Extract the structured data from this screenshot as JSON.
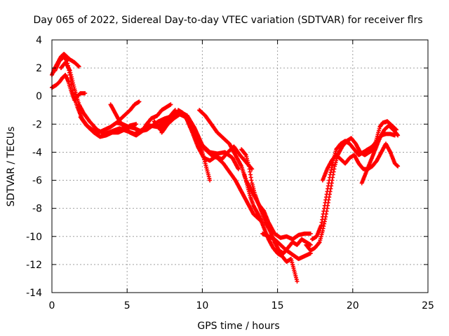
{
  "chart_data": {
    "type": "scatter",
    "title": "Day 065 of 2022, Sidereal Day-to-day VTEC variation (SDTVAR) for receiver flrs",
    "xlabel": "GPS time / hours",
    "ylabel": "SDTVAR / TECUs",
    "xlim": [
      0,
      25
    ],
    "ylim": [
      -14,
      4
    ],
    "xticks": [
      0,
      5,
      10,
      15,
      20,
      25
    ],
    "yticks": [
      -14,
      -12,
      -10,
      -8,
      -6,
      -4,
      -2,
      0,
      2,
      4
    ],
    "grid": true,
    "legend": "none",
    "marker": "plus",
    "color": "#ff0000",
    "tracks": [
      [
        [
          0.0,
          1.5
        ],
        [
          0.2,
          2.0
        ],
        [
          0.4,
          2.4
        ],
        [
          0.6,
          2.8
        ],
        [
          0.8,
          3.0
        ],
        [
          1.0,
          2.8
        ],
        [
          1.2,
          2.6
        ],
        [
          1.5,
          2.4
        ],
        [
          1.8,
          2.1
        ]
      ],
      [
        [
          0.0,
          0.6
        ],
        [
          0.3,
          0.8
        ],
        [
          0.5,
          1.0
        ],
        [
          0.7,
          1.3
        ],
        [
          0.9,
          1.5
        ],
        [
          1.1,
          1.0
        ],
        [
          1.3,
          0.3
        ],
        [
          1.5,
          -0.3
        ],
        [
          1.7,
          0.0
        ],
        [
          1.9,
          0.2
        ],
        [
          2.2,
          0.2
        ]
      ],
      [
        [
          0.2,
          1.8
        ],
        [
          0.5,
          2.5
        ],
        [
          0.8,
          2.8
        ],
        [
          1.0,
          2.5
        ],
        [
          1.2,
          1.5
        ],
        [
          1.4,
          0.2
        ],
        [
          1.7,
          -0.8
        ],
        [
          2.0,
          -1.6
        ],
        [
          2.4,
          -2.2
        ],
        [
          2.8,
          -2.6
        ],
        [
          3.2,
          -2.9
        ],
        [
          3.6,
          -2.8
        ],
        [
          4.0,
          -2.6
        ],
        [
          4.4,
          -2.6
        ],
        [
          4.8,
          -2.4
        ],
        [
          5.2,
          -2.1
        ],
        [
          5.6,
          -2.0
        ]
      ],
      [
        [
          0.6,
          2.0
        ],
        [
          0.9,
          2.4
        ],
        [
          1.2,
          1.8
        ],
        [
          1.5,
          0.5
        ],
        [
          1.8,
          -0.6
        ],
        [
          2.1,
          -1.2
        ],
        [
          2.5,
          -1.8
        ],
        [
          3.0,
          -2.4
        ],
        [
          3.5,
          -2.7
        ],
        [
          4.0,
          -2.5
        ],
        [
          4.5,
          -2.3
        ],
        [
          5.0,
          -2.5
        ],
        [
          5.5,
          -2.7
        ],
        [
          6.0,
          -2.4
        ],
        [
          6.5,
          -2.1
        ],
        [
          7.0,
          -2.2
        ],
        [
          7.5,
          -1.8
        ],
        [
          8.0,
          -1.4
        ],
        [
          8.5,
          -1.1
        ],
        [
          9.0,
          -1.4
        ],
        [
          9.5,
          -2.3
        ],
        [
          10.0,
          -3.5
        ],
        [
          10.5,
          -4.0
        ],
        [
          11.0,
          -4.1
        ],
        [
          11.5,
          -4.0
        ],
        [
          12.0,
          -4.4
        ],
        [
          12.4,
          -5.2
        ]
      ],
      [
        [
          1.9,
          -1.5
        ],
        [
          2.3,
          -2.1
        ],
        [
          2.7,
          -2.4
        ],
        [
          3.1,
          -2.6
        ],
        [
          3.5,
          -2.4
        ],
        [
          3.9,
          -2.2
        ],
        [
          4.3,
          -1.9
        ],
        [
          4.7,
          -2.0
        ],
        [
          5.1,
          -2.2
        ],
        [
          5.5,
          -2.3
        ],
        [
          5.9,
          -2.5
        ],
        [
          6.3,
          -2.4
        ],
        [
          6.7,
          -2.1
        ],
        [
          7.1,
          -1.8
        ],
        [
          7.5,
          -1.6
        ],
        [
          7.8,
          -1.5
        ],
        [
          8.2,
          -1.0
        ]
      ],
      [
        [
          3.9,
          -0.6
        ],
        [
          4.2,
          -1.2
        ],
        [
          4.5,
          -1.8
        ],
        [
          4.8,
          -2.2
        ],
        [
          5.2,
          -2.6
        ],
        [
          5.6,
          -2.8
        ],
        [
          6.0,
          -2.5
        ],
        [
          6.3,
          -2.0
        ],
        [
          6.6,
          -1.6
        ],
        [
          7.0,
          -1.4
        ],
        [
          7.3,
          -1.0
        ],
        [
          7.6,
          -0.8
        ],
        [
          7.9,
          -0.6
        ]
      ],
      [
        [
          4.4,
          -1.8
        ],
        [
          4.8,
          -1.4
        ],
        [
          5.2,
          -1.0
        ],
        [
          5.5,
          -0.6
        ],
        [
          5.8,
          -0.4
        ]
      ],
      [
        [
          6.8,
          -1.8
        ],
        [
          7.2,
          -2.4
        ],
        [
          7.6,
          -1.8
        ],
        [
          8.0,
          -1.4
        ],
        [
          8.4,
          -1.2
        ],
        [
          8.8,
          -1.4
        ],
        [
          9.2,
          -2.0
        ],
        [
          9.6,
          -2.8
        ],
        [
          10.0,
          -4.0
        ],
        [
          10.3,
          -5.2
        ],
        [
          10.5,
          -6.0
        ]
      ],
      [
        [
          7.3,
          -2.6
        ],
        [
          7.7,
          -2.0
        ],
        [
          8.1,
          -1.6
        ],
        [
          8.5,
          -1.3
        ],
        [
          8.9,
          -1.5
        ],
        [
          9.3,
          -2.5
        ],
        [
          9.7,
          -3.6
        ],
        [
          10.1,
          -4.4
        ],
        [
          10.5,
          -4.6
        ],
        [
          10.9,
          -4.3
        ],
        [
          11.3,
          -4.5
        ],
        [
          11.7,
          -4.0
        ],
        [
          12.1,
          -3.6
        ],
        [
          12.5,
          -4.2
        ],
        [
          12.9,
          -4.7
        ],
        [
          13.3,
          -5.2
        ]
      ],
      [
        [
          8.4,
          -1.0
        ],
        [
          8.7,
          -1.2
        ],
        [
          9.1,
          -1.8
        ],
        [
          9.4,
          -2.4
        ],
        [
          9.8,
          -3.2
        ],
        [
          10.2,
          -3.8
        ],
        [
          10.6,
          -4.2
        ],
        [
          11.0,
          -4.4
        ],
        [
          11.4,
          -4.8
        ],
        [
          11.8,
          -5.4
        ],
        [
          12.2,
          -6.0
        ],
        [
          12.6,
          -6.8
        ],
        [
          13.0,
          -7.6
        ],
        [
          13.4,
          -8.4
        ],
        [
          13.8,
          -8.8
        ]
      ],
      [
        [
          9.8,
          -1.0
        ],
        [
          10.2,
          -1.4
        ],
        [
          10.6,
          -2.0
        ],
        [
          11.0,
          -2.6
        ],
        [
          11.4,
          -3.0
        ],
        [
          11.8,
          -3.4
        ],
        [
          12.0,
          -3.8
        ],
        [
          12.3,
          -4.4
        ],
        [
          12.6,
          -5.0
        ],
        [
          12.9,
          -6.0
        ],
        [
          13.2,
          -6.6
        ],
        [
          13.5,
          -7.2
        ],
        [
          13.8,
          -7.8
        ],
        [
          14.1,
          -8.2
        ],
        [
          14.4,
          -9.0
        ],
        [
          14.8,
          -9.8
        ],
        [
          15.2,
          -10.1
        ],
        [
          15.6,
          -10.0
        ],
        [
          16.0,
          -10.2
        ],
        [
          16.4,
          -9.9
        ],
        [
          16.8,
          -9.8
        ],
        [
          17.2,
          -9.8
        ]
      ],
      [
        [
          12.6,
          -3.8
        ],
        [
          12.9,
          -4.2
        ],
        [
          13.1,
          -5.0
        ],
        [
          13.3,
          -6.2
        ],
        [
          13.5,
          -7.0
        ],
        [
          13.7,
          -7.6
        ],
        [
          14.0,
          -8.4
        ],
        [
          14.2,
          -9.0
        ],
        [
          14.5,
          -9.6
        ],
        [
          14.8,
          -10.4
        ],
        [
          15.1,
          -11.0
        ],
        [
          15.4,
          -11.2
        ],
        [
          15.7,
          -10.8
        ],
        [
          16.0,
          -10.4
        ],
        [
          16.3,
          -10.6
        ],
        [
          16.6,
          -10.2
        ],
        [
          16.9,
          -10.4
        ],
        [
          17.2,
          -10.6
        ]
      ],
      [
        [
          12.8,
          -5.6
        ],
        [
          13.0,
          -6.4
        ],
        [
          13.2,
          -7.2
        ],
        [
          13.4,
          -7.8
        ],
        [
          13.6,
          -8.2
        ],
        [
          13.8,
          -8.6
        ],
        [
          14.1,
          -9.4
        ],
        [
          14.4,
          -10.2
        ],
        [
          14.7,
          -10.8
        ],
        [
          15.0,
          -11.2
        ],
        [
          15.3,
          -11.4
        ],
        [
          15.6,
          -11.8
        ],
        [
          15.9,
          -11.6
        ],
        [
          16.1,
          -12.4
        ],
        [
          16.3,
          -13.2
        ]
      ],
      [
        [
          14.0,
          -9.8
        ],
        [
          14.4,
          -10.0
        ],
        [
          14.8,
          -10.2
        ],
        [
          15.2,
          -10.6
        ],
        [
          15.6,
          -11.0
        ],
        [
          16.0,
          -11.3
        ],
        [
          16.4,
          -11.6
        ],
        [
          16.8,
          -11.4
        ],
        [
          17.2,
          -11.2
        ]
      ],
      [
        [
          16.9,
          -10.6
        ],
        [
          17.2,
          -11.0
        ],
        [
          17.5,
          -10.8
        ],
        [
          17.8,
          -10.4
        ],
        [
          18.0,
          -9.6
        ],
        [
          18.2,
          -8.6
        ],
        [
          18.4,
          -7.4
        ],
        [
          18.6,
          -6.2
        ],
        [
          18.8,
          -5.0
        ],
        [
          19.0,
          -4.2
        ],
        [
          19.3,
          -3.6
        ],
        [
          19.6,
          -3.2
        ],
        [
          19.9,
          -3.0
        ],
        [
          20.2,
          -3.4
        ],
        [
          20.5,
          -4.0
        ],
        [
          20.8,
          -4.2
        ],
        [
          21.1,
          -4.0
        ],
        [
          21.4,
          -3.8
        ],
        [
          21.6,
          -3.0
        ],
        [
          21.8,
          -2.2
        ],
        [
          22.0,
          -1.9
        ],
        [
          22.3,
          -1.8
        ],
        [
          22.6,
          -2.1
        ],
        [
          22.9,
          -2.4
        ]
      ],
      [
        [
          17.3,
          -10.2
        ],
        [
          17.6,
          -10.0
        ],
        [
          17.9,
          -9.2
        ],
        [
          18.1,
          -8.0
        ],
        [
          18.3,
          -6.8
        ],
        [
          18.5,
          -5.6
        ],
        [
          18.7,
          -4.6
        ],
        [
          18.9,
          -3.8
        ],
        [
          19.2,
          -3.4
        ],
        [
          19.5,
          -3.2
        ],
        [
          19.8,
          -3.4
        ],
        [
          20.1,
          -3.8
        ],
        [
          20.4,
          -4.2
        ],
        [
          20.7,
          -4.0
        ],
        [
          21.0,
          -3.8
        ],
        [
          21.3,
          -3.6
        ],
        [
          21.6,
          -3.2
        ],
        [
          21.9,
          -2.8
        ],
        [
          22.2,
          -2.7
        ],
        [
          22.5,
          -2.7
        ],
        [
          22.8,
          -2.8
        ]
      ],
      [
        [
          18.0,
          -6.0
        ],
        [
          18.3,
          -5.2
        ],
        [
          18.6,
          -4.6
        ],
        [
          18.9,
          -4.2
        ],
        [
          19.2,
          -4.5
        ],
        [
          19.5,
          -4.8
        ],
        [
          19.8,
          -4.4
        ],
        [
          20.1,
          -4.2
        ],
        [
          20.4,
          -4.8
        ],
        [
          20.7,
          -5.2
        ],
        [
          21.0,
          -5.2
        ],
        [
          21.3,
          -5.0
        ],
        [
          21.6,
          -4.6
        ],
        [
          21.9,
          -4.0
        ],
        [
          22.2,
          -3.4
        ],
        [
          22.5,
          -4.0
        ],
        [
          22.8,
          -4.8
        ],
        [
          23.0,
          -5.0
        ]
      ],
      [
        [
          20.6,
          -6.2
        ],
        [
          20.9,
          -5.4
        ],
        [
          21.2,
          -4.6
        ],
        [
          21.5,
          -3.8
        ],
        [
          21.8,
          -3.0
        ],
        [
          22.1,
          -2.4
        ],
        [
          22.4,
          -2.1
        ],
        [
          22.7,
          -2.4
        ],
        [
          23.0,
          -2.8
        ]
      ]
    ]
  }
}
